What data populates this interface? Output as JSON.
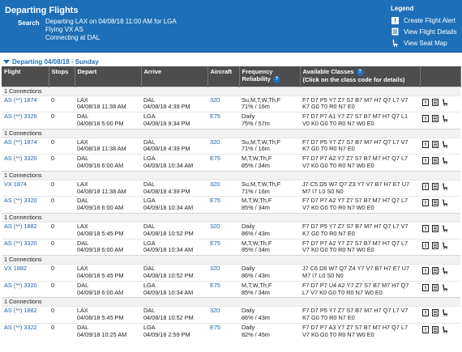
{
  "header": {
    "title": "Departing Flights",
    "search_label": "Search",
    "search_lines": [
      "Departing LAX on 04/08/18 11:00 AM for LGA",
      "Flying VX AS",
      "Connecting at DAL"
    ]
  },
  "legend": {
    "title": "Legend",
    "items": [
      {
        "label": "Create Flight Alert",
        "icon": "alert-icon"
      },
      {
        "label": "View Flight Details",
        "icon": "details-icon"
      },
      {
        "label": "View Seat Map",
        "icon": "seat-icon"
      }
    ]
  },
  "section": {
    "label": "Departing 04/08/18 - Sunday"
  },
  "columns": {
    "flight": "Flight",
    "stops": "Stops",
    "depart": "Depart",
    "arrive": "Arrive",
    "aircraft": "Aircraft",
    "frequency": "Frequency",
    "reliability": "Reliability",
    "classes": "Available Classes",
    "classes_hint": "(Click on the class code for details)"
  },
  "groups": [
    {
      "label": "1 Connections",
      "flights": [
        {
          "flight": "AS (**) 1874",
          "stops": "0",
          "dep_city": "LAX",
          "dep_time": "04/08/18 11:38 AM",
          "arr_city": "DAL",
          "arr_time": "04/08/18 4:39 PM",
          "aircraft": "320",
          "freq": "Su,M,T,W,Th,F",
          "rel": "71% / 16m",
          "classes1": "F7 D7 P5 Y7 Z7 S7 B7 M7 H7 Q7 L7 V7",
          "classes2": "K7 G0 T0 R0 N7 E0"
        },
        {
          "flight": "AS (**) 3326",
          "stops": "0",
          "dep_city": "DAL",
          "dep_time": "04/08/18 5:00 PM",
          "arr_city": "LGA",
          "arr_time": "04/08/18 9:34 PM",
          "aircraft": "E75",
          "freq": "Daily",
          "rel": "75% / 57m",
          "classes1": "F7 D7 P7 A1 Y7 Z7 S7 B7 M7 H7 Q7 L1",
          "classes2": "V0 K0 G0 T0 R0 N7 W0 E0"
        }
      ]
    },
    {
      "label": "1 Connections",
      "flights": [
        {
          "flight": "AS (**) 1874",
          "stops": "0",
          "dep_city": "LAX",
          "dep_time": "04/08/18 11:38 AM",
          "arr_city": "DAL",
          "arr_time": "04/08/18 4:39 PM",
          "aircraft": "320",
          "freq": "Su,M,T,W,Th,F",
          "rel": "71% / 16m",
          "classes1": "F7 D7 P5 Y7 Z7 S7 B7 M7 H7 Q7 L7 V7",
          "classes2": "K7 G0 T0 R0 N7 E0"
        },
        {
          "flight": "AS (**) 3320",
          "stops": "0",
          "dep_city": "DAL",
          "dep_time": "04/09/18 6:00 AM",
          "arr_city": "LGA",
          "arr_time": "04/09/18 10:34 AM",
          "aircraft": "E75",
          "freq": "M,T,W,Th,F",
          "rel": "85% / 34m",
          "classes1": "F7 D7 P7 A2 Y7 Z7 S7 B7 M7 H7 Q7 L7",
          "classes2": "V7 K0 G0 T0 R0 N7 W0 E0"
        }
      ]
    },
    {
      "label": "1 Connections",
      "flights": [
        {
          "flight": "VX 1874",
          "stops": "0",
          "dep_city": "LAX",
          "dep_time": "04/08/18 11:38 AM",
          "arr_city": "DAL",
          "arr_time": "04/08/18 4:39 PM",
          "aircraft": "320",
          "freq": "Su,M,T,W,Th,F",
          "rel": "71% / 16m",
          "classes1": "J7 C5 D5 W7 Q7 Z3 Y7 V7 B7 H7 E7 U7",
          "classes2": "M7 I7 L0 S0 N0"
        },
        {
          "flight": "AS (**) 3320",
          "stops": "0",
          "dep_city": "DAL",
          "dep_time": "04/09/18 6:00 AM",
          "arr_city": "LGA",
          "arr_time": "04/09/18 10:34 AM",
          "aircraft": "E75",
          "freq": "M,T,W,Th,F",
          "rel": "85% / 34m",
          "classes1": "F7 D7 P7 A2 Y7 Z7 S7 B7 M7 H7 Q7 L7",
          "classes2": "V7 K0 G0 T0 R0 N7 W0 E0"
        }
      ]
    },
    {
      "label": "1 Connections",
      "flights": [
        {
          "flight": "AS (**) 1882",
          "stops": "0",
          "dep_city": "LAX",
          "dep_time": "04/08/18 5:45 PM",
          "arr_city": "DAL",
          "arr_time": "04/08/18 10:52 PM",
          "aircraft": "320",
          "freq": "Daily",
          "rel": "86% / 43m",
          "classes1": "F7 D7 P5 Y7 Z7 S7 B7 M7 H7 Q7 L7 V7",
          "classes2": "K7 G0 T0 R0 N7 E0"
        },
        {
          "flight": "AS (**) 3320",
          "stops": "0",
          "dep_city": "DAL",
          "dep_time": "04/09/18 6:00 AM",
          "arr_city": "LGA",
          "arr_time": "04/09/18 10:34 AM",
          "aircraft": "E75",
          "freq": "M,T,W,Th,F",
          "rel": "85% / 34m",
          "classes1": "F7 D7 P7 A2 Y7 Z7 S7 B7 M7 H7 Q7 L7",
          "classes2": "V7 K0 G0 T0 R0 N7 W0 E0"
        }
      ]
    },
    {
      "label": "1 Connections",
      "flights": [
        {
          "flight": "VX 1882",
          "stops": "0",
          "dep_city": "LAX",
          "dep_time": "04/08/18 5:45 PM",
          "arr_city": "DAL",
          "arr_time": "04/08/18 10:52 PM",
          "aircraft": "320",
          "freq": "Daily",
          "rel": "86% / 43m",
          "classes1": "J7 C6 D6 W7 Q7 Z4 Y7 V7 B7 H7 E7 U7",
          "classes2": "M7 I7 L0 S0 N0"
        },
        {
          "flight": "AS (**) 3320",
          "stops": "0",
          "dep_city": "DAL",
          "dep_time": "04/09/18 6:00 AM",
          "arr_city": "LGA",
          "arr_time": "04/09/18 10:34 AM",
          "aircraft": "E75",
          "freq": "M,T,W,Th,F",
          "rel": "85% / 34m",
          "classes1": "F7 D7 P7 U4 A2 Y7 Z7 S7 B7 M7 H7 Q7",
          "classes2": "L7 V7 K0 G0 T0 R0 N7 W0 E0"
        }
      ]
    },
    {
      "label": "1 Connections",
      "flights": [
        {
          "flight": "AS (**) 1882",
          "stops": "0",
          "dep_city": "LAX",
          "dep_time": "04/08/18 5:45 PM",
          "arr_city": "DAL",
          "arr_time": "04/08/18 10:52 PM",
          "aircraft": "320",
          "freq": "Daily",
          "rel": "86% / 43m",
          "classes1": "F7 D7 P5 Y7 Z7 S7 B7 M7 H7 Q7 L7 V7",
          "classes2": "K7 G0 T0 R0 N7 E0"
        },
        {
          "flight": "AS (**) 3322",
          "stops": "0",
          "dep_city": "DAL",
          "dep_time": "04/09/18 10:25 AM",
          "arr_city": "LGA",
          "arr_time": "04/09/18 2:59 PM",
          "aircraft": "E75",
          "freq": "Daily",
          "rel": "82% / 45m",
          "classes1": "F7 D7 P7 A3 Y7 Z7 S7 B7 M7 H7 Q7 L7",
          "classes2": "V7 K0 G0 T0 R0 N7 W0 E0"
        }
      ]
    }
  ],
  "colors": {
    "header_bg": "#1d6fb8",
    "table_header_bg": "#4d4d4d",
    "link": "#1d5ea8"
  }
}
